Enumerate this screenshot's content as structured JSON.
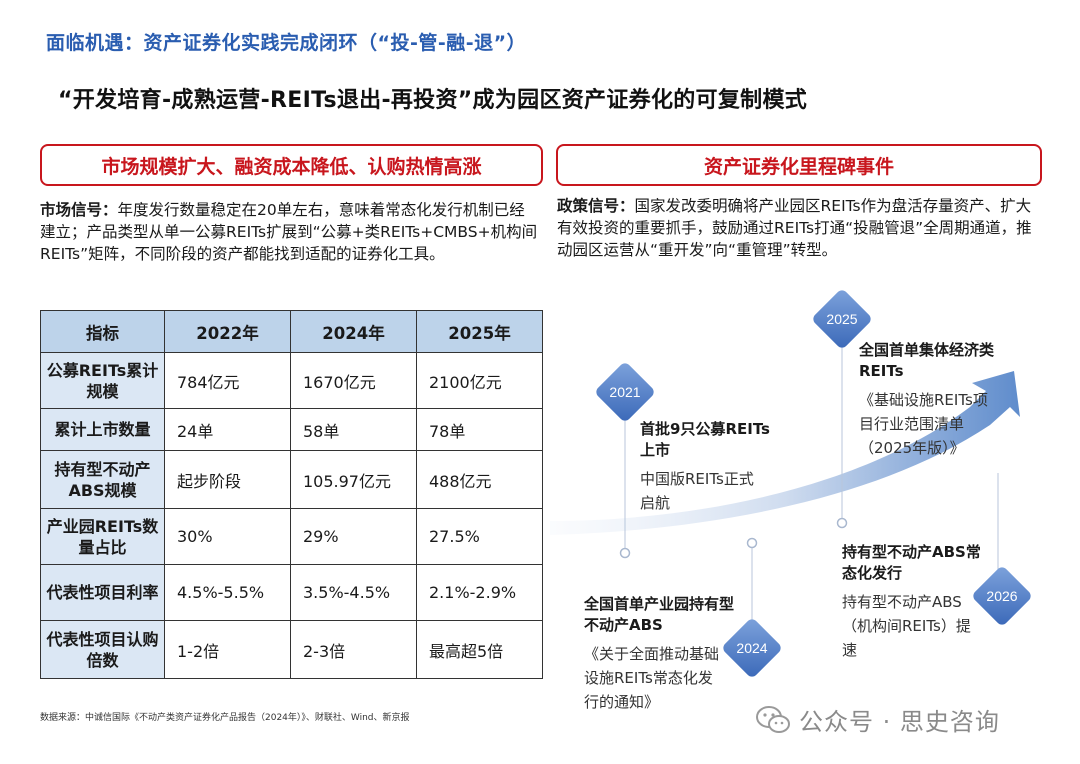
{
  "header": {
    "section_title": "面临机遇：资产证券化实践完成闭环（“投-管-融-退”）",
    "main_title": "“开发培育-成熟运营-REITs退出-再投资”成为园区资产证券化的可复制模式"
  },
  "left": {
    "pill": "市场规模扩大、融资成本降低、认购热情高涨",
    "para_label": "市场信号：",
    "para_text": "年度发行数量稳定在20单左右，意味着常态化发行机制已经建立；产品类型从单一公募REITs扩展到“公募+类REITs+CMBS+机构间REITs”矩阵，不同阶段的资产都能找到适配的证券化工具。"
  },
  "table": {
    "headers": [
      "指标",
      "2022年",
      "2024年",
      "2025年"
    ],
    "rows": [
      {
        "label": "公募REITs累计规模",
        "v1": "784亿元",
        "v2": "1670亿元",
        "v3": "2100亿元"
      },
      {
        "label": "累计上市数量",
        "v1": "24单",
        "v2": "58单",
        "v3": "78单"
      },
      {
        "label": "持有型不动产ABS规模",
        "v1": "起步阶段",
        "v2": "105.97亿元",
        "v3": "488亿元"
      },
      {
        "label": "产业园REITs数量占比",
        "v1": "30%",
        "v2": "29%",
        "v3": "27.5%"
      },
      {
        "label": "代表性项目利率",
        "v1": "4.5%-5.5%",
        "v2": "3.5%-4.5%",
        "v3": "2.1%-2.9%"
      },
      {
        "label": "代表性项目认购倍数",
        "v1": "1-2倍",
        "v2": "2-3倍",
        "v3": "最高超5倍"
      }
    ]
  },
  "source": "数据来源：中诚信国际《不动产类资产证券化产品报告（2024年）》、财联社、Wind、新京报",
  "right": {
    "pill": "资产证券化里程碑事件",
    "para_label": "政策信号：",
    "para_text": "国家发改委明确将产业园区REITs作为盘活存量资产、扩大有效投资的重要抓手，鼓励通过REITs打通“投融管退”全周期通道，推动园区运营从“重开发”向“重管理”转型。"
  },
  "milestones": [
    {
      "year": "2021",
      "title": "首批9只公募REITs上市",
      "desc": "中国版REITs正式启航"
    },
    {
      "year": "2024",
      "title": "全国首单产业园持有型不动产ABS",
      "desc": "《关于全面推动基础设施REITs常态化发行的通知》"
    },
    {
      "year": "2025",
      "title": "全国首单集体经济类REITs",
      "desc": "《基础设施REITs项目行业范围清单（2025年版）》"
    },
    {
      "year": "2026",
      "title": "持有型不动产ABS常态化发行",
      "desc": "持有型不动产ABS（机构间REITs）提速"
    }
  ],
  "watermark": "公众号 · 思史咨询",
  "colors": {
    "accent_red": "#c8161d",
    "title_blue": "#2a5db0",
    "header_fill": "#bdd3ea",
    "label_fill": "#dbe7f4",
    "diamond_blue": "#4a78c4"
  }
}
